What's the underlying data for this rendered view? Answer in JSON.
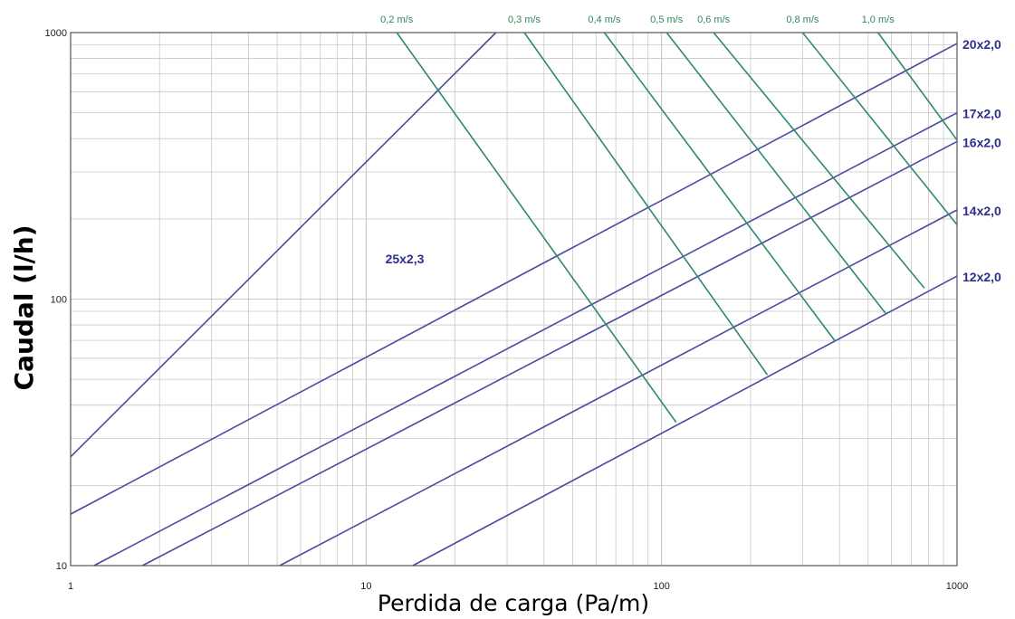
{
  "chart_data": {
    "type": "line",
    "title": "",
    "xlabel": "Perdida de carga (Pa/m)",
    "ylabel": "Caudal (l/h)",
    "xscale": "log",
    "yscale": "log",
    "xlim": [
      1,
      1000
    ],
    "ylim": [
      10,
      1000
    ],
    "x_ticks": [
      1,
      10,
      100,
      1000
    ],
    "x_tick_labels": [
      "1",
      "10",
      "100",
      "1000"
    ],
    "y_ticks": [
      10,
      100,
      1000
    ],
    "y_tick_labels": [
      "10",
      "100",
      "1000"
    ],
    "grid": true,
    "pipe_series": [
      {
        "name": "25x2,3",
        "x": [
          1,
          27.5
        ],
        "y": [
          25.6,
          1000
        ]
      },
      {
        "name": "20x2,0",
        "x": [
          1,
          1000
        ],
        "y": [
          15.6,
          910
        ]
      },
      {
        "name": "17x2,0",
        "x": [
          1.2,
          1000
        ],
        "y": [
          10,
          500
        ]
      },
      {
        "name": "16x2,0",
        "x": [
          1.75,
          1000
        ],
        "y": [
          10,
          390
        ]
      },
      {
        "name": "14x2,0",
        "x": [
          5.1,
          1000
        ],
        "y": [
          10,
          216
        ]
      },
      {
        "name": "12x2,0",
        "x": [
          14.4,
          1000
        ],
        "y": [
          10,
          122
        ]
      }
    ],
    "velocity_series": [
      {
        "name": "0,2 m/s",
        "x": [
          12.7,
          112
        ],
        "y": [
          1000,
          34.5
        ]
      },
      {
        "name": "0,3 m/s",
        "x": [
          34.3,
          228
        ],
        "y": [
          1000,
          52
        ]
      },
      {
        "name": "0,4 m/s",
        "x": [
          64,
          385
        ],
        "y": [
          1000,
          70
        ]
      },
      {
        "name": "0,5 m/s",
        "x": [
          104,
          575
        ],
        "y": [
          1000,
          88
        ]
      },
      {
        "name": "0,6 m/s",
        "x": [
          150,
          775
        ],
        "y": [
          1000,
          110
        ]
      },
      {
        "name": "0,8 m/s",
        "x": [
          300,
          1000
        ],
        "y": [
          1000,
          190
        ]
      },
      {
        "name": "1,0 m/s",
        "x": [
          540,
          1000
        ],
        "y": [
          1000,
          395
        ]
      }
    ],
    "colors": {
      "pipe": "#4a4aa0",
      "pipe_label": "#2e2e8c",
      "velocity": "#2e8a6c",
      "velocity_label": "#2e8a5a",
      "grid": "#c8c8c8",
      "frame": "#555555",
      "title": "#222222"
    }
  }
}
